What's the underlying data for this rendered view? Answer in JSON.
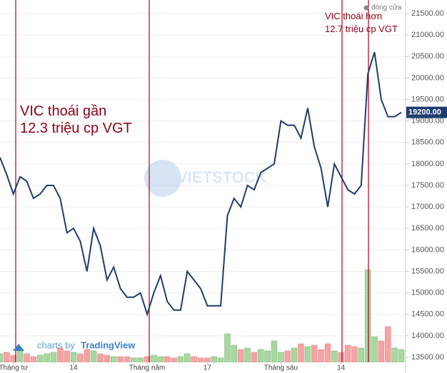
{
  "chart_data": {
    "type": "line",
    "legend": "đóng cửa",
    "annotations": [
      "VIC thoái gần\n12.3 triệu cp VGT",
      "VIC thoái hơn\n12.7 triệu cp VGT"
    ],
    "watermark": "VIETSTOCK",
    "credit": "charts by",
    "credit_brand": "TradingView",
    "categories": [
      null,
      null,
      "Tháng tư",
      null,
      null,
      null,
      null,
      null,
      null,
      null,
      null,
      "14",
      null,
      null,
      null,
      null,
      null,
      null,
      null,
      null,
      null,
      null,
      "Tháng năm",
      null,
      null,
      null,
      null,
      null,
      null,
      null,
      null,
      "17",
      null,
      null,
      null,
      null,
      null,
      null,
      null,
      null,
      null,
      null,
      "Tháng sáu",
      null,
      null,
      null,
      null,
      null,
      null,
      null,
      null,
      "14",
      null,
      null,
      null,
      null,
      null,
      null,
      null,
      null,
      null
    ],
    "series": [
      {
        "name": "đóng cửa",
        "color": "#1f3d6e",
        "values": [
          18150,
          17750,
          17300,
          17700,
          17600,
          17200,
          17300,
          17500,
          17500,
          17200,
          16400,
          16500,
          16200,
          15500,
          16500,
          16100,
          15300,
          15600,
          15100,
          14900,
          14900,
          15000,
          14500,
          15000,
          15400,
          14800,
          14600,
          14600,
          15500,
          15300,
          15100,
          14700,
          14700,
          14700,
          16800,
          17200,
          17000,
          17500,
          17400,
          17800,
          17900,
          18000,
          19000,
          18900,
          18900,
          18600,
          19300,
          18400,
          17900,
          17000,
          18000,
          17700,
          17400,
          17300,
          17500,
          20100,
          20600,
          19500,
          19100,
          19100,
          19200
        ]
      },
      {
        "name": "volume",
        "type": "bar",
        "colors": {
          "up": "#a8d8a0",
          "down": "#f5a3a3"
        },
        "values": [
          12,
          14,
          10,
          16,
          12,
          8,
          10,
          12,
          14,
          20,
          16,
          14,
          12,
          18,
          16,
          12,
          10,
          8,
          8,
          8,
          6,
          6,
          8,
          10,
          8,
          8,
          6,
          8,
          12,
          8,
          6,
          6,
          8,
          6,
          40,
          24,
          18,
          20,
          14,
          18,
          16,
          30,
          14,
          16,
          20,
          26,
          22,
          24,
          18,
          26,
          16,
          14,
          24,
          22,
          20,
          130,
          36,
          30,
          50,
          20,
          18
        ]
      }
    ],
    "last_price": {
      "value": 19200,
      "label": "19200.00"
    },
    "ylim": [
      13384,
      21815
    ],
    "vlim": [
      0,
      150
    ],
    "yticks": [
      {
        "value": 13500,
        "label": "13500.00"
      },
      {
        "value": 14000,
        "label": "14000.00"
      },
      {
        "value": 14500,
        "label": "14500.00"
      },
      {
        "value": 15000,
        "label": "15000.00"
      },
      {
        "value": 15500,
        "label": "15500.00"
      },
      {
        "value": 16000,
        "label": "16000.00"
      },
      {
        "value": 16500,
        "label": "16500.00"
      },
      {
        "value": 17000,
        "label": "17000.00"
      },
      {
        "value": 17500,
        "label": "17500.00"
      },
      {
        "value": 18000,
        "label": "18000.00"
      },
      {
        "value": 18500,
        "label": "18500.00"
      },
      {
        "value": 19000,
        "label": "19000.00"
      },
      {
        "value": 19500,
        "label": "19500.00"
      },
      {
        "value": 20000,
        "label": "20000.00"
      },
      {
        "value": 20500,
        "label": "20500.00"
      },
      {
        "value": 21000,
        "label": "21000.00"
      },
      {
        "value": 21500,
        "label": "21500.00"
      }
    ],
    "grid": true
  }
}
